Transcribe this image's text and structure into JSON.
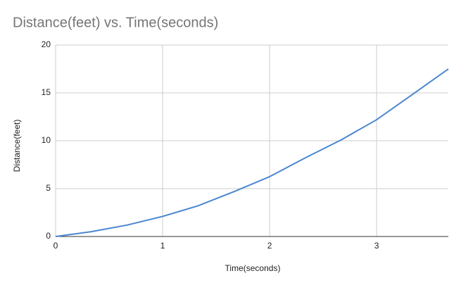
{
  "chart_data": {
    "type": "line",
    "title": "Distance(feet) vs. Time(seconds)",
    "x_label": "Time(seconds)",
    "y_label": "Distance(feet)",
    "x": [
      0,
      0.33,
      0.67,
      1,
      1.33,
      1.67,
      2,
      2.33,
      2.67,
      3,
      3.33,
      3.67
    ],
    "series": [
      {
        "name": "Distance(feet)",
        "color": "#4a86d0",
        "values": [
          0,
          0.5,
          1.2,
          2.1,
          3.2,
          4.7,
          6.25,
          8.2,
          10.1,
          12.2,
          14.8,
          17.5
        ]
      }
    ],
    "xlim": [
      0,
      3.67
    ],
    "ylim": [
      0,
      20
    ],
    "xticks": [
      0,
      1,
      2,
      3
    ],
    "yticks": [
      0,
      5,
      10,
      15,
      20
    ],
    "grid": true
  }
}
